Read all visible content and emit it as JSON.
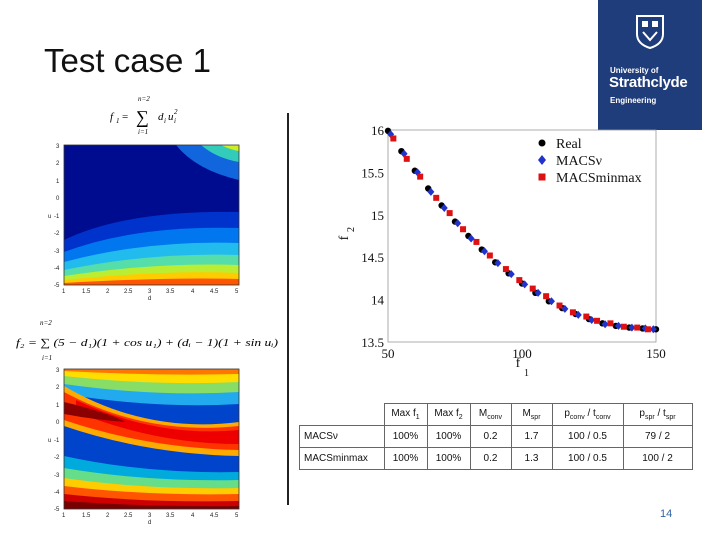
{
  "title": "Test case 1",
  "logo": {
    "line1": "University of",
    "line2": "Strathclyde",
    "line3": "Engineering",
    "bg_color": "#1f3d7a",
    "icon": "crest-icon"
  },
  "formula1": {
    "lhs": "f",
    "lhs_sub": "1",
    "sum_top": "n=2",
    "sum_bottom": "i=1",
    "term": "d",
    "term_sub": "i",
    "term2": "u",
    "term2_sub": "i",
    "term2_sup": "2"
  },
  "formula2": {
    "text": "f₂ = ∑ (5 − d₁)(1 + cos u₁) + (dᵢ − 1)(1 + sin uᵢ)",
    "sum_top": "n=2",
    "sum_bottom": "i=1"
  },
  "contour1": {
    "yticks": [
      "3",
      "2",
      "1",
      "0",
      "-1",
      "-2",
      "-3",
      "-4",
      "-5"
    ],
    "xticks": [
      "1",
      "1.5",
      "2",
      "2.5",
      "3",
      "3.5",
      "4",
      "4.5",
      "5"
    ],
    "ylabel": "u",
    "xlabel": "d"
  },
  "contour2": {
    "yticks": [
      "3",
      "2",
      "1",
      "0",
      "-1",
      "-2",
      "-3",
      "-4",
      "-5"
    ],
    "xticks": [
      "1",
      "1.5",
      "2",
      "2.5",
      "3",
      "3.5",
      "4",
      "4.5",
      "5"
    ],
    "ylabel": "u",
    "xlabel": "d"
  },
  "chart_data": {
    "type": "scatter",
    "title": "",
    "xlabel": "f",
    "xlabel_sub": "1",
    "ylabel": "f",
    "ylabel_sub": "2",
    "xlim": [
      50,
      150
    ],
    "ylim": [
      13.5,
      16
    ],
    "xticks": [
      "50",
      "100",
      "150"
    ],
    "yticks": [
      "13.5",
      "14",
      "14.5",
      "15",
      "15.5",
      "16"
    ],
    "legend_position": "top-right",
    "series": [
      {
        "name": "Real",
        "color": "#000000",
        "marker": "circle",
        "x": [
          50,
          55,
          60,
          65,
          70,
          75,
          80,
          85,
          90,
          95,
          100,
          105,
          110,
          115,
          120,
          125,
          130,
          135,
          140,
          145,
          150
        ],
        "y": [
          15.99,
          15.75,
          15.52,
          15.31,
          15.11,
          14.92,
          14.75,
          14.59,
          14.44,
          14.31,
          14.19,
          14.08,
          13.98,
          13.9,
          13.83,
          13.77,
          13.72,
          13.69,
          13.67,
          13.66,
          13.65
        ]
      },
      {
        "name": "MACSν",
        "color": "#2233cc",
        "marker": "diamond",
        "x": [
          51,
          56,
          61,
          66,
          71,
          76,
          81,
          86,
          91,
          96,
          101,
          106,
          111,
          116,
          121,
          126,
          131,
          136,
          141,
          146,
          149
        ],
        "y": [
          15.95,
          15.72,
          15.5,
          15.27,
          15.08,
          14.9,
          14.72,
          14.57,
          14.43,
          14.3,
          14.18,
          14.08,
          13.98,
          13.89,
          13.82,
          13.76,
          13.71,
          13.69,
          13.67,
          13.66,
          13.65
        ]
      },
      {
        "name": "MACSminmax",
        "color": "#dd1111",
        "marker": "square",
        "x": [
          52,
          57,
          62,
          68,
          73,
          78,
          83,
          88,
          94,
          99,
          104,
          109,
          114,
          119,
          124,
          128,
          133,
          138,
          143,
          147
        ],
        "y": [
          15.9,
          15.66,
          15.45,
          15.2,
          15.02,
          14.83,
          14.68,
          14.52,
          14.36,
          14.23,
          14.13,
          14.04,
          13.93,
          13.85,
          13.8,
          13.75,
          13.72,
          13.68,
          13.67,
          13.65
        ]
      }
    ]
  },
  "table": {
    "headers": [
      "",
      "Max f₁",
      "Max f₂",
      "Mconv",
      "Mspr",
      "pconv / tconv",
      "pspr / tspr"
    ],
    "rows": [
      [
        "MACSν",
        "100%",
        "100%",
        "0.2",
        "1.7",
        "100 / 0.5",
        "79 / 2"
      ],
      [
        "MACSminmax",
        "100%",
        "100%",
        "0.2",
        "1.3",
        "100 / 0.5",
        "100 / 2"
      ]
    ]
  },
  "page_number": "14"
}
